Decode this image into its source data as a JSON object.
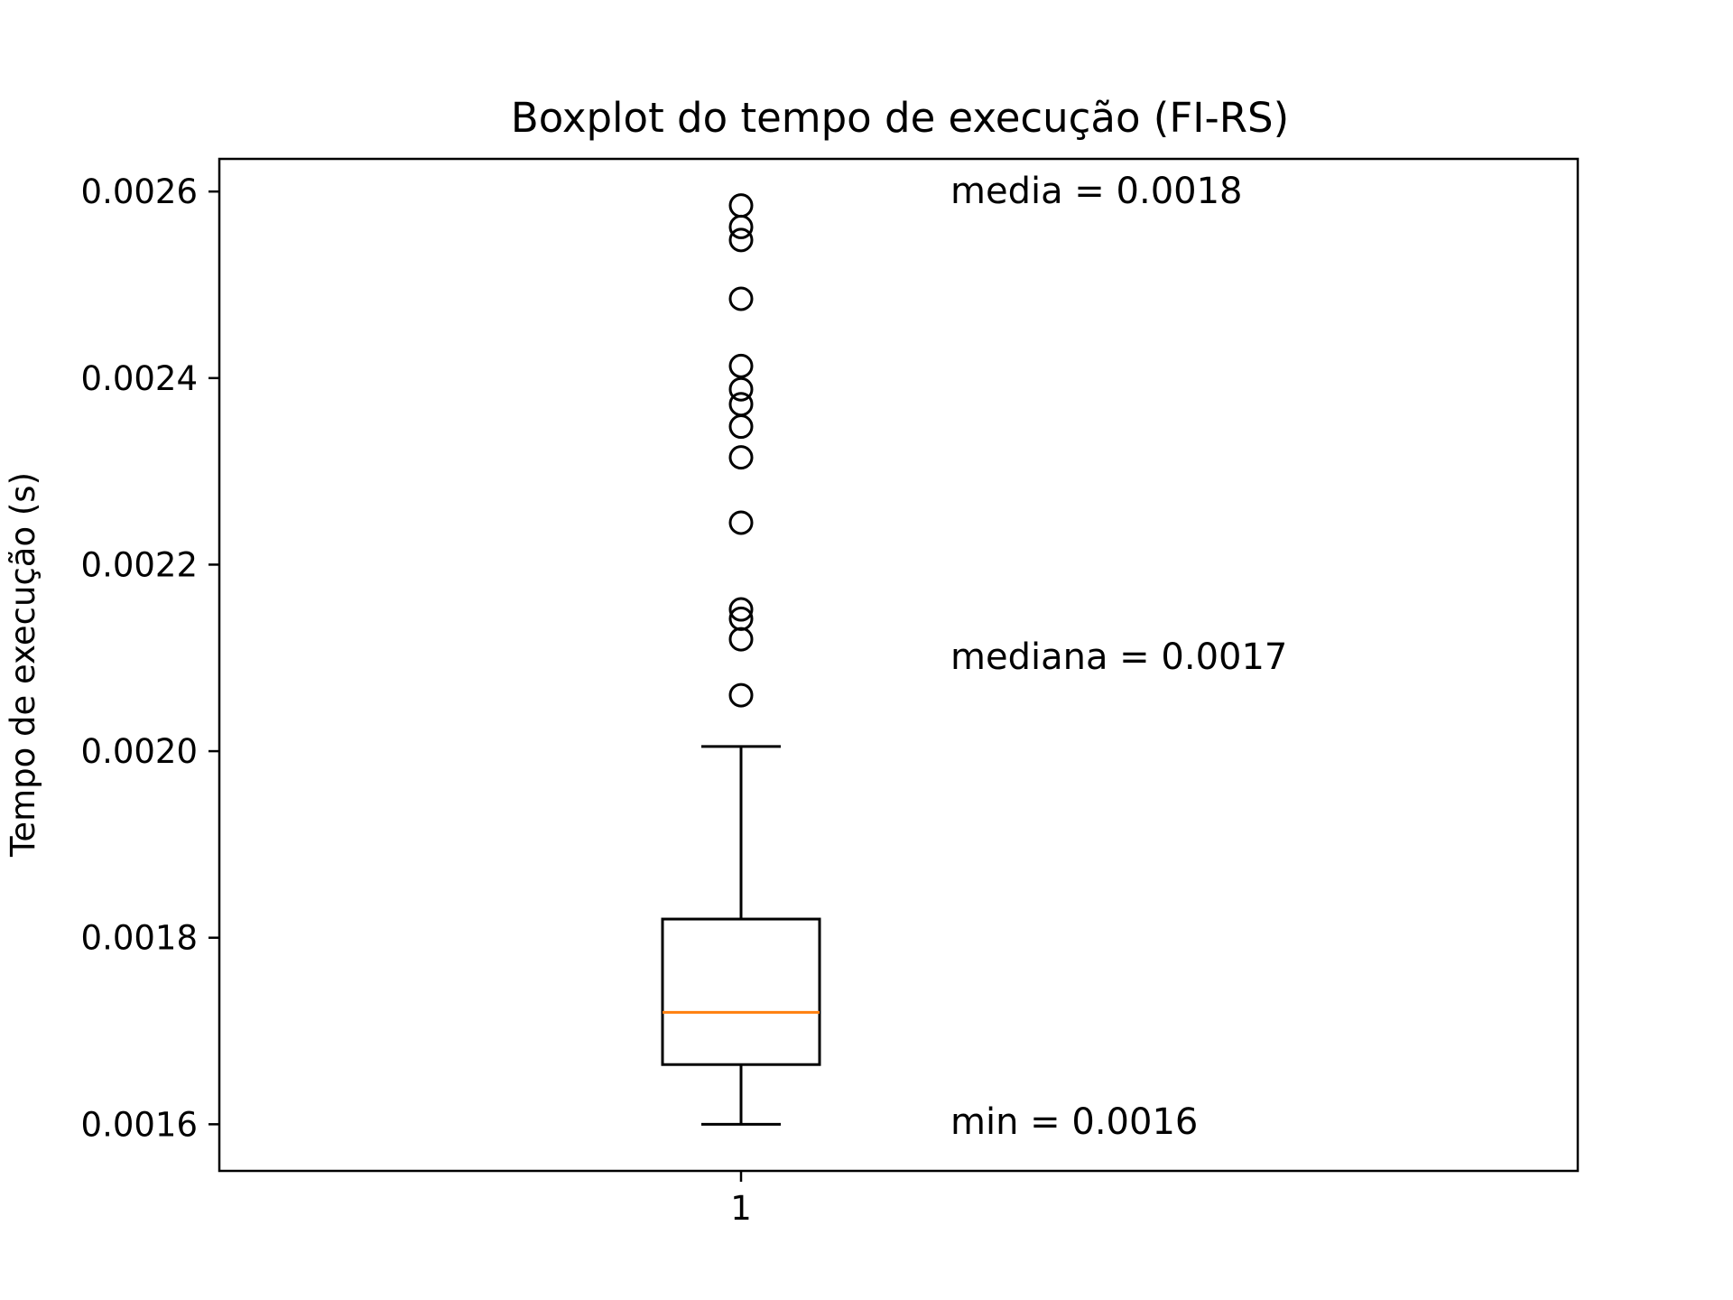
{
  "chart_data": {
    "type": "boxplot",
    "title": "Boxplot do tempo de execução (FI-RS)",
    "xlabel": "",
    "ylabel": "Tempo de execução (s)",
    "categories": [
      "1"
    ],
    "ylim": [
      0.00155,
      0.002635
    ],
    "yticks": [
      0.0016,
      0.0018,
      0.002,
      0.0022,
      0.0024,
      0.0026
    ],
    "ytick_labels": [
      "0.0016",
      "0.0018",
      "0.0020",
      "0.0022",
      "0.0024",
      "0.0026"
    ],
    "grid": false,
    "box": {
      "whisker_low": 0.0016,
      "q1": 0.001664,
      "median": 0.00172,
      "q3": 0.00182,
      "whisker_high": 0.002005
    },
    "outliers": [
      0.00206,
      0.00212,
      0.002142,
      0.002152,
      0.002245,
      0.002315,
      0.002348,
      0.002372,
      0.002388,
      0.002413,
      0.002485,
      0.002548,
      0.002562,
      0.002585
    ],
    "annotations": [
      "media = 0.0018",
      "mediana = 0.0017",
      "min = 0.0016"
    ],
    "colors": {
      "box": "#000000",
      "median": "#ff7f0e",
      "outlier": "#000000"
    }
  }
}
